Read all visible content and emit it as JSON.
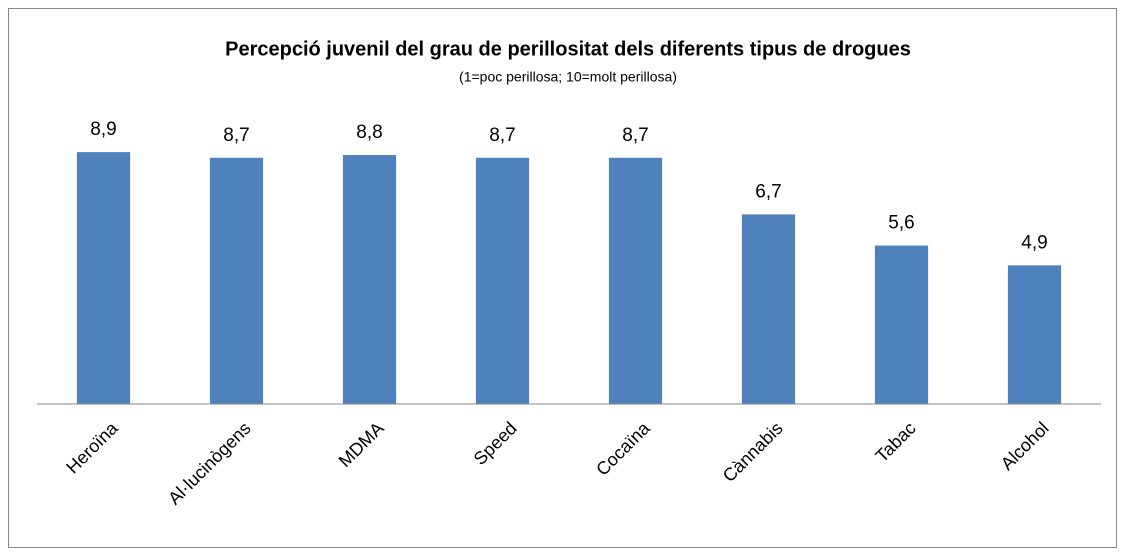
{
  "chart_data": {
    "type": "bar",
    "title": "Percepció juvenil del grau de perillositat dels diferents tipus de drogues",
    "subtitle": "(1=poc perillosa; 10=molt perillosa)",
    "categories": [
      "Heroïna",
      "Al·lucinògens",
      "MDMA",
      "Speed",
      "Cocaïna",
      "Cànnabis",
      "Tabac",
      "Alcohol"
    ],
    "values": [
      8.9,
      8.7,
      8.8,
      8.7,
      8.7,
      6.7,
      5.6,
      4.9
    ],
    "value_labels": [
      "8,9",
      "8,7",
      "8,8",
      "8,7",
      "8,7",
      "6,7",
      "5,6",
      "4,9"
    ],
    "color": "#4f81bd",
    "ylim": [
      0,
      10
    ]
  }
}
